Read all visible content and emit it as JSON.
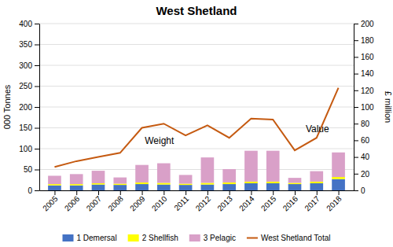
{
  "chart_data": {
    "type": "bar",
    "title": "West Shetland",
    "x": [
      2005,
      2006,
      2007,
      2008,
      2009,
      2010,
      2011,
      2012,
      2013,
      2014,
      2015,
      2016,
      2017,
      2018
    ],
    "xlim": [
      2004.3,
      2018.7
    ],
    "xticks": [
      2005,
      2006,
      2007,
      2008,
      2009,
      2010,
      2011,
      2012,
      2013,
      2014,
      2015,
      2016,
      2017,
      2018
    ],
    "ylabel": "000 Tonnes",
    "y2label": "£ million",
    "ylim": [
      0,
      400
    ],
    "yticks": [
      0,
      50,
      100,
      150,
      200,
      250,
      300,
      350,
      400
    ],
    "y2lim": [
      0,
      200
    ],
    "y2ticks": [
      0,
      20,
      40,
      60,
      80,
      100,
      120,
      140,
      160,
      180,
      200
    ],
    "stacked": true,
    "grid": true,
    "legend": "bottom",
    "series": [
      {
        "name": "1 Demersal",
        "type": "bar",
        "color": "#4472c4",
        "values": [
          12,
          12,
          14,
          13,
          15,
          14,
          13,
          14,
          15,
          17,
          17,
          15,
          17,
          27
        ]
      },
      {
        "name": "2 Shellfish",
        "type": "bar",
        "color": "#ffff00",
        "values": [
          3,
          3,
          3,
          3,
          4,
          4,
          3,
          4,
          4,
          4,
          4,
          3,
          4,
          5
        ]
      },
      {
        "name": "3 Pelagic",
        "type": "bar",
        "color": "#d9a0c8",
        "values": [
          20,
          24,
          30,
          15,
          42,
          47,
          21,
          61,
          32,
          74,
          74,
          12,
          25,
          59
        ]
      },
      {
        "name": "West Shetland Total",
        "type": "line",
        "axis": "y2",
        "color": "#c55a11",
        "values": [
          28,
          35,
          40,
          45,
          75,
          80,
          66,
          78,
          63,
          86,
          85,
          48,
          63,
          123
        ]
      }
    ],
    "annotations": [
      {
        "text": "Weight",
        "x": 2009.8,
        "y": 107
      },
      {
        "text": "Value",
        "x": 2016.5,
        "y": 135
      }
    ]
  }
}
